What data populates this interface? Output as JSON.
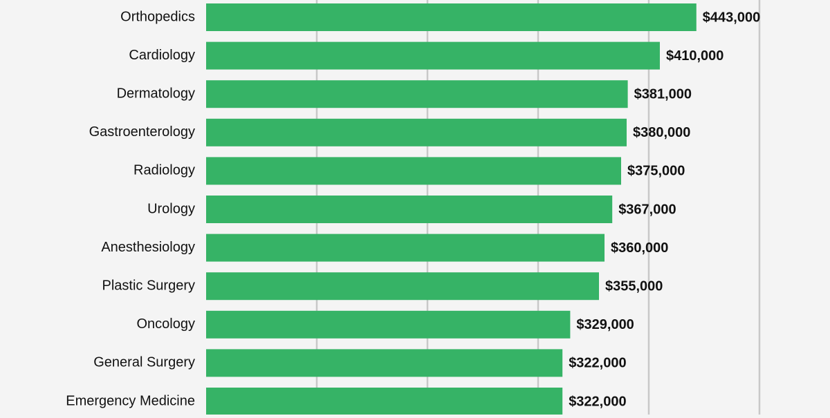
{
  "chart_data": {
    "type": "bar",
    "orientation": "horizontal",
    "categories": [
      "Orthopedics",
      "Cardiology",
      "Dermatology",
      "Gastroenterology",
      "Radiology",
      "Urology",
      "Anesthesiology",
      "Plastic Surgery",
      "Oncology",
      "General Surgery",
      "Emergency Medicine"
    ],
    "values": [
      443000,
      410000,
      381000,
      380000,
      375000,
      367000,
      360000,
      355000,
      329000,
      322000,
      322000
    ],
    "value_labels": [
      "$443,000",
      "$410,000",
      "$381,000",
      "$380,000",
      "$375,000",
      "$367,000",
      "$360,000",
      "$355,000",
      "$329,000",
      "$322,000",
      "$322,000"
    ],
    "xlim": [
      0,
      500000
    ],
    "grid_x": [
      100000,
      200000,
      300000,
      400000,
      500000
    ],
    "grid": true,
    "bar_color": "#36b366",
    "grid_color": "#c8c8c8",
    "background_color": "#f4f4f4",
    "title": "",
    "xlabel": "",
    "ylabel": ""
  }
}
